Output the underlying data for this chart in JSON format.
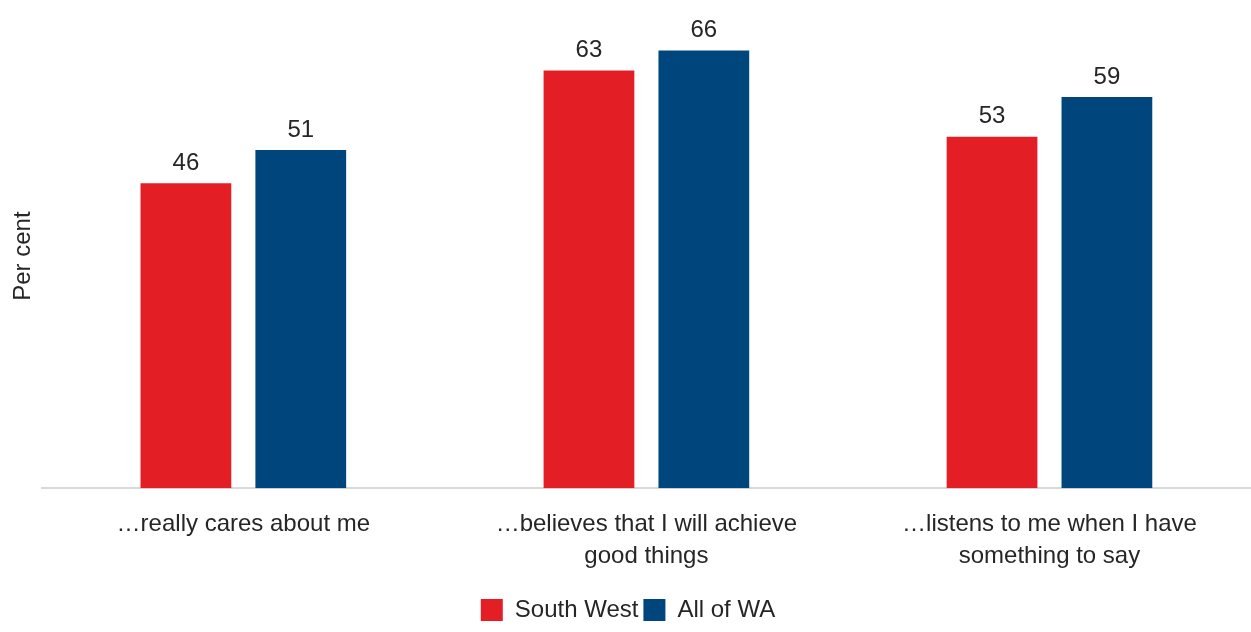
{
  "chart_data": {
    "type": "bar",
    "ylabel": "Per cent",
    "categories": [
      "…really cares about me",
      "…believes that I will achieve good things",
      "…listens to me when I have something to say"
    ],
    "series": [
      {
        "name": "South West",
        "color": "#e31e25",
        "values": [
          46,
          63,
          53
        ]
      },
      {
        "name": "All of WA",
        "color": "#00467c",
        "values": [
          51,
          66,
          59
        ]
      }
    ],
    "data_labels": true,
    "legend": "bottom",
    "tick_labels": "x"
  }
}
